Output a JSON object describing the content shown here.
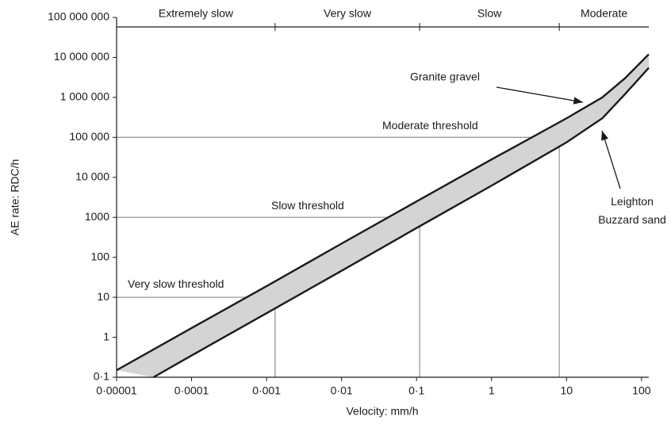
{
  "chart_data": {
    "type": "band",
    "x_label": "Velocity: mm/h",
    "y_label": "AE rate: RDC/h",
    "xscale": "log",
    "yscale": "log",
    "xlim": [
      1e-05,
      125
    ],
    "ylim": [
      0.1,
      100000000
    ],
    "xticks": [
      {
        "value": 1e-05,
        "label": "0·00001"
      },
      {
        "value": 0.0001,
        "label": "0·0001"
      },
      {
        "value": 0.001,
        "label": "0·001"
      },
      {
        "value": 0.01,
        "label": "0·01"
      },
      {
        "value": 0.1,
        "label": "0·1"
      },
      1,
      10,
      100
    ],
    "yticks": [
      {
        "value": 0.1,
        "label": "0·1"
      },
      1,
      10,
      100,
      1000,
      {
        "value": 10000,
        "label": "10 000"
      },
      {
        "value": 100000,
        "label": "100 000"
      },
      {
        "value": 1000000,
        "label": "1 000 000"
      },
      {
        "value": 10000000,
        "label": "10 000 000"
      },
      {
        "value": 100000000,
        "label": "100 000 000"
      }
    ],
    "fill_color": "#d4d4d4",
    "series": [
      {
        "name": "Granite gravel",
        "color": "#1a1a1a",
        "x": [
          1e-05,
          0.0001,
          0.001,
          0.01,
          0.1,
          1,
          10,
          30,
          60,
          125
        ],
        "values": [
          0.15,
          1.7,
          19,
          220,
          2500,
          28000,
          300000,
          1000000,
          3000000,
          12000000
        ]
      },
      {
        "name": "Leighton Buzzard sand",
        "color": "#1a1a1a",
        "x": [
          3.1e-05,
          0.0001,
          0.001,
          0.01,
          0.1,
          1,
          10,
          30,
          60,
          125
        ],
        "values": [
          0.1,
          0.35,
          4,
          46,
          540,
          6200,
          75000,
          300000,
          1200000,
          5500000
        ]
      }
    ],
    "thresholds": [
      {
        "label": "Very slow threshold",
        "x": 0.0013,
        "y": 10
      },
      {
        "label": "Slow threshold",
        "x": 0.11,
        "y": 1000
      },
      {
        "label": "Moderate threshold",
        "x": 8,
        "y": 100000
      }
    ],
    "zones": [
      "Extremely slow",
      "Very slow",
      "Slow",
      "Moderate"
    ]
  }
}
